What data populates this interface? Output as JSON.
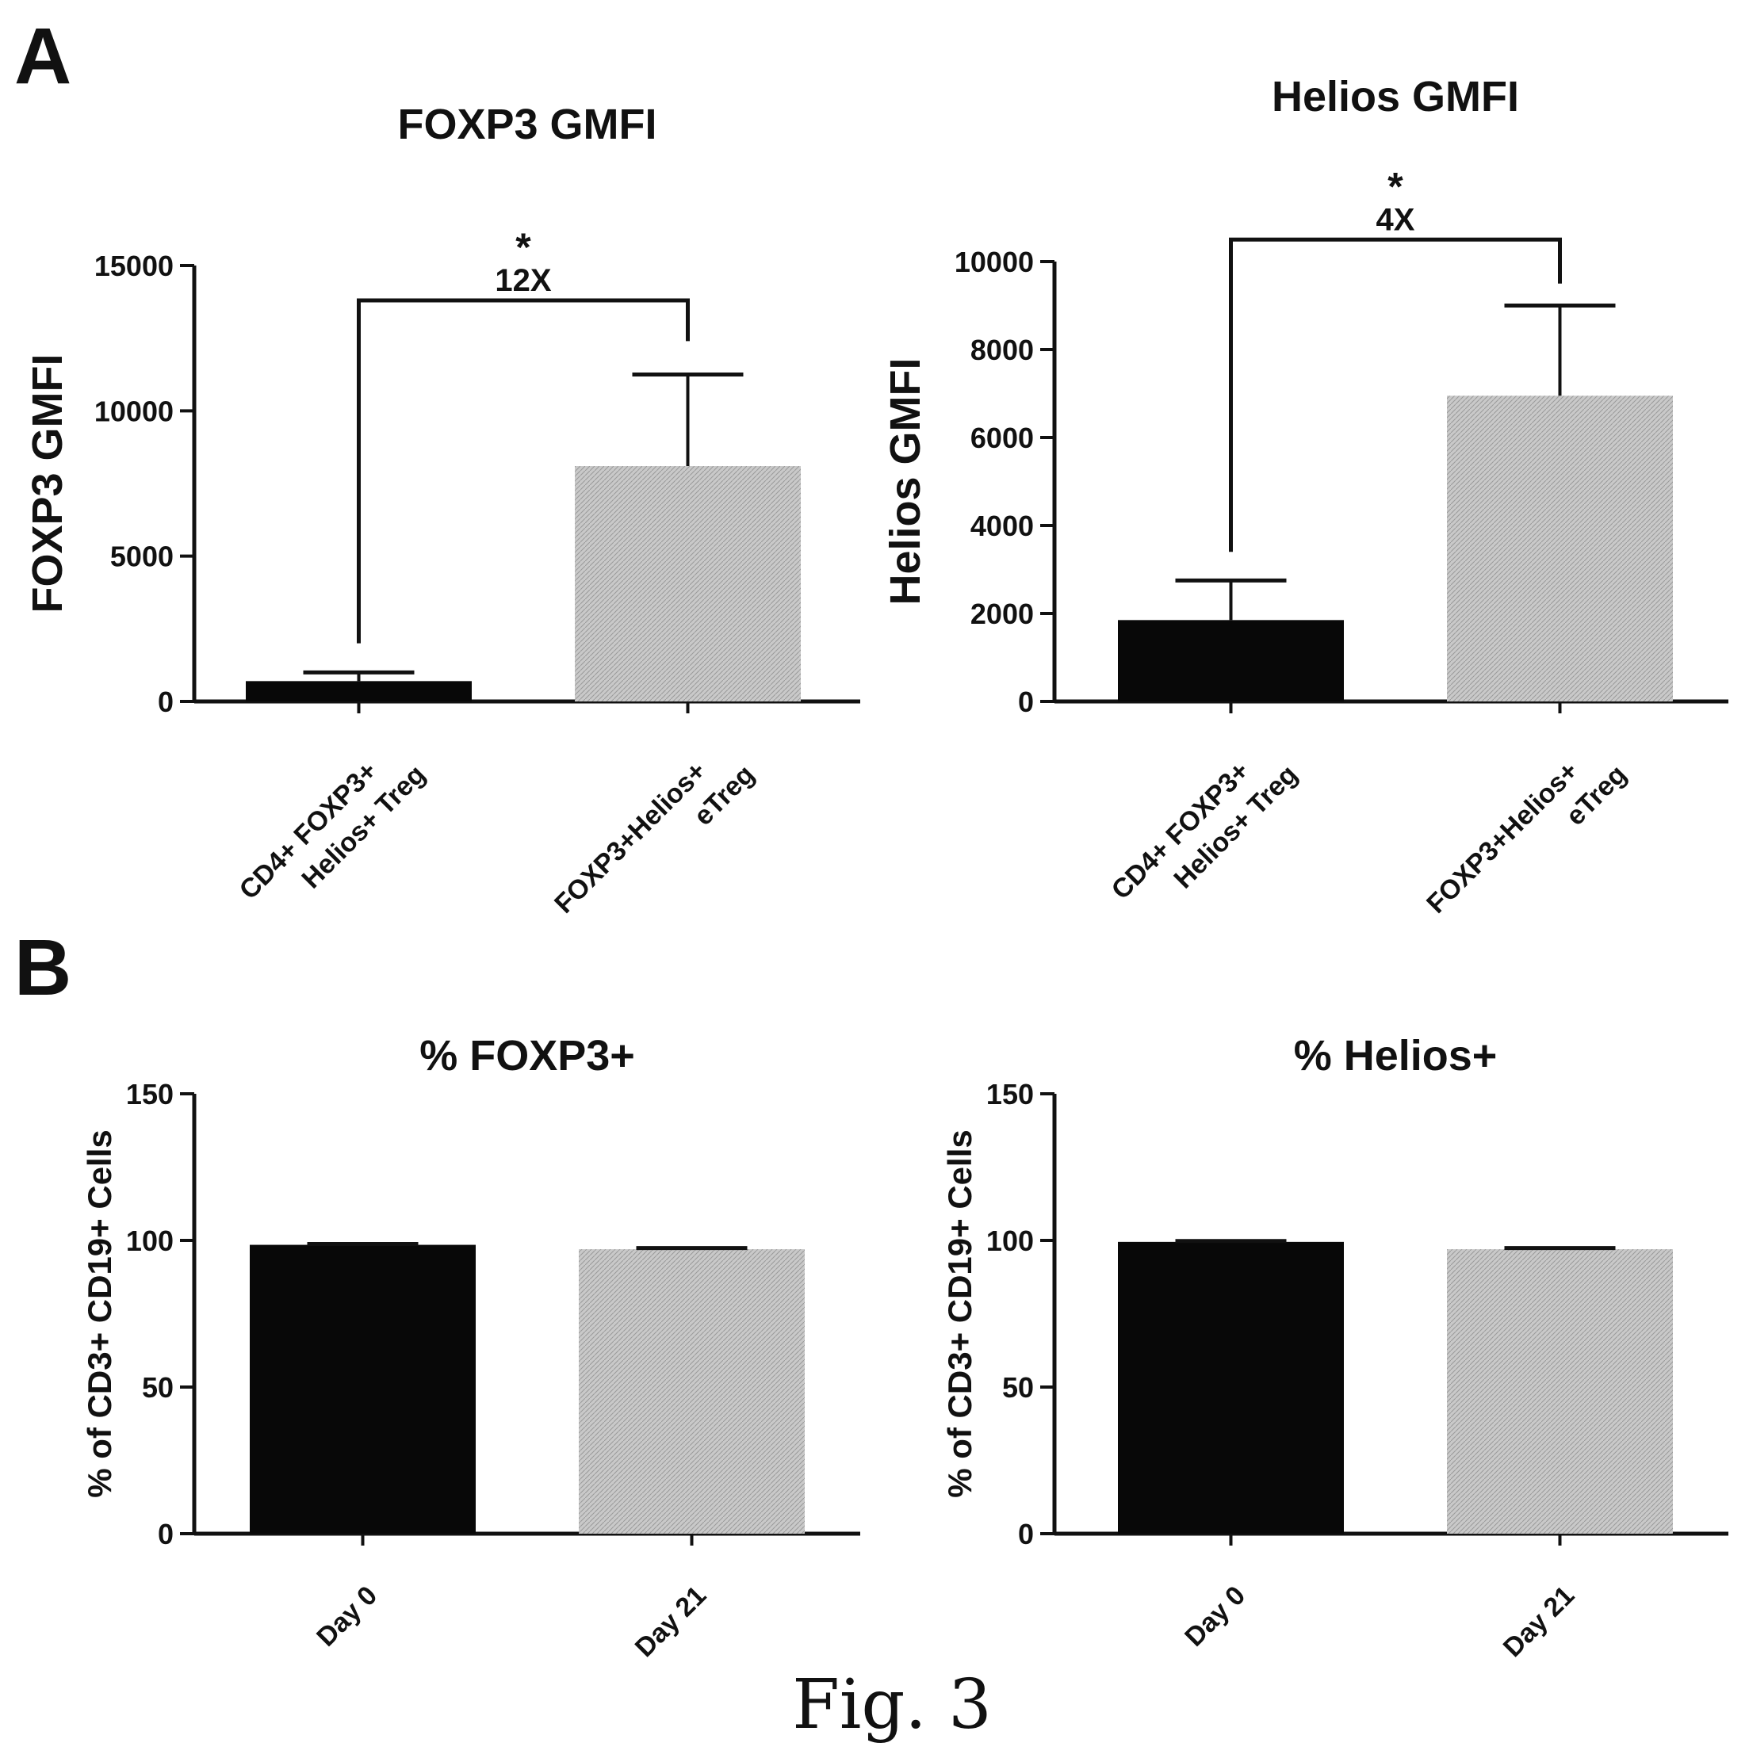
{
  "figure": {
    "caption": "Fig. 3",
    "panel_labels": [
      "A",
      "B"
    ],
    "colors": {
      "dark_bar": "#080808",
      "light_bar": "#c4c4c4",
      "axis": "#111111"
    }
  },
  "chart_data": [
    {
      "panel": "A",
      "type": "bar",
      "title": "FOXP3 GMFI",
      "ylabel": "FOXP3 GMFI",
      "xlabel": "",
      "categories": [
        "CD4+ FOXP3+ Helios+ Treg",
        "FOXP3+Helios+ eTreg"
      ],
      "category_lines": [
        [
          "CD4+ FOXP3+",
          "Helios+ Treg"
        ],
        [
          "FOXP3+Helios+",
          "eTreg"
        ]
      ],
      "values": [
        700,
        8100
      ],
      "errors": [
        300,
        3150
      ],
      "ylim": [
        0,
        15000
      ],
      "yticks": [
        0,
        5000,
        10000,
        15000
      ],
      "ytick_labels": [
        "0",
        "5000",
        "10000",
        "15000"
      ],
      "bar_styles": [
        "dark",
        "light"
      ],
      "significance": {
        "star": "*",
        "label": "12X",
        "bracket_y": 13800,
        "left_end": 2000,
        "right_end": 12400
      }
    },
    {
      "panel": "A",
      "type": "bar",
      "title": "Helios GMFI",
      "ylabel": "Helios GMFI",
      "xlabel": "",
      "categories": [
        "CD4+ FOXP3+ Helios+ Treg",
        "FOXP3+Helios+ eTreg"
      ],
      "category_lines": [
        [
          "CD4+ FOXP3+",
          "Helios+ Treg"
        ],
        [
          "FOXP3+Helios+",
          "eTreg"
        ]
      ],
      "values": [
        1850,
        6950
      ],
      "errors": [
        900,
        2050
      ],
      "ylim": [
        0,
        10000
      ],
      "yticks": [
        0,
        2000,
        4000,
        6000,
        8000,
        10000
      ],
      "ytick_labels": [
        "0",
        "2000",
        "4000",
        "6000",
        "8000",
        "10000"
      ],
      "bar_styles": [
        "dark",
        "light"
      ],
      "significance": {
        "star": "*",
        "label": "4X",
        "bracket_y": 10500,
        "left_end": 3400,
        "right_end": 9500
      }
    },
    {
      "panel": "B",
      "type": "bar",
      "title": "% FOXP3+",
      "ylabel": "% of CD3+ CD19+ Cells",
      "xlabel": "",
      "categories": [
        "Day 0",
        "Day 21"
      ],
      "category_lines": [
        [
          "Day 0"
        ],
        [
          "Day 21"
        ]
      ],
      "values": [
        98.5,
        97
      ],
      "errors": [
        0.3,
        0.4
      ],
      "ylim": [
        0,
        150
      ],
      "yticks": [
        0,
        50,
        100,
        150
      ],
      "ytick_labels": [
        "0",
        "50",
        "100",
        "150"
      ],
      "bar_styles": [
        "dark",
        "light"
      ]
    },
    {
      "panel": "B",
      "type": "bar",
      "title": "% Helios+",
      "ylabel": "% of CD3+ CD19+ Cells",
      "xlabel": "",
      "categories": [
        "Day 0",
        "Day 21"
      ],
      "category_lines": [
        [
          "Day 0"
        ],
        [
          "Day 21"
        ]
      ],
      "values": [
        99.5,
        97
      ],
      "errors": [
        0.3,
        0.4
      ],
      "ylim": [
        0,
        150
      ],
      "yticks": [
        0,
        50,
        100,
        150
      ],
      "ytick_labels": [
        "0",
        "50",
        "100",
        "150"
      ],
      "bar_styles": [
        "dark",
        "light"
      ]
    }
  ]
}
